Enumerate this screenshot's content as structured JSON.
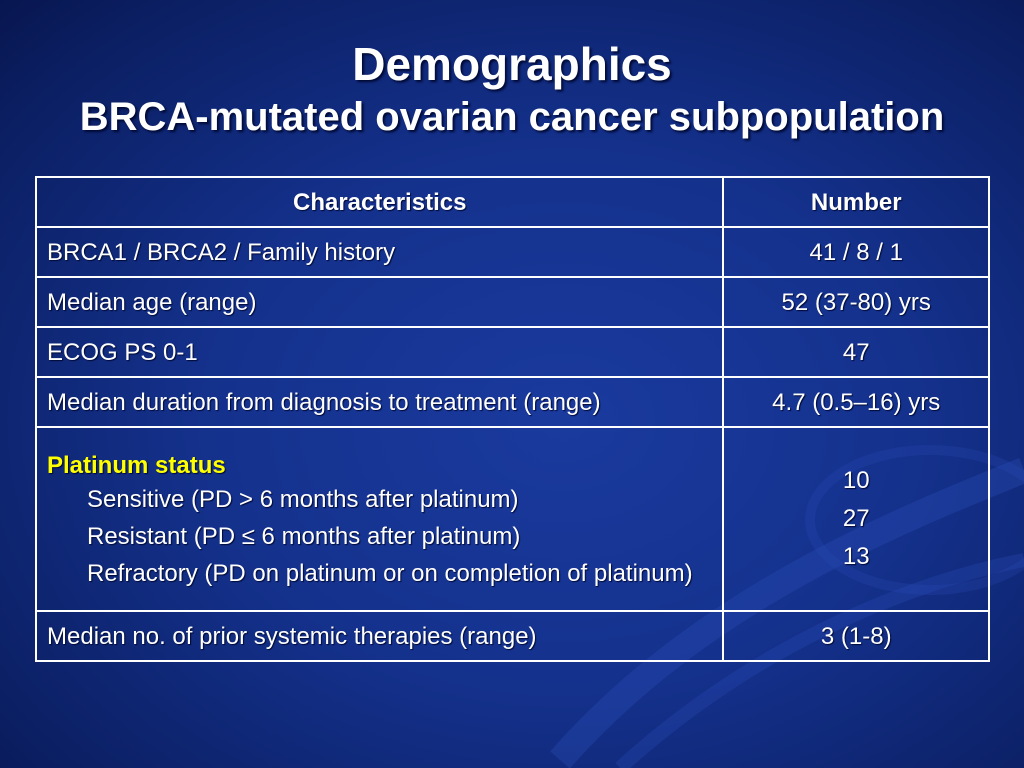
{
  "slide": {
    "title": "Demographics",
    "subtitle": "BRCA-mutated ovarian cancer subpopulation"
  },
  "table": {
    "headers": {
      "characteristics": "Characteristics",
      "number": "Number"
    },
    "rows": [
      {
        "label": "BRCA1 / BRCA2 / Family history",
        "value": "41 / 8 / 1"
      },
      {
        "label": "Median age (range)",
        "value": "52 (37-80) yrs"
      },
      {
        "label": "ECOG PS 0-1",
        "value": "47"
      },
      {
        "label": "Median duration from diagnosis to treatment (range)",
        "value": "4.7 (0.5–16) yrs"
      }
    ],
    "platinum": {
      "heading": "Platinum status",
      "items": [
        {
          "label": "Sensitive (PD > 6 months after platinum)",
          "value": "10"
        },
        {
          "label": "Resistant (PD ≤ 6 months after platinum)",
          "value": "27"
        },
        {
          "label": "Refractory (PD on platinum or on completion of platinum)",
          "value": "13"
        }
      ]
    },
    "last_row": {
      "label": "Median no. of prior systemic therapies (range)",
      "value": "3 (1-8)"
    }
  },
  "colors": {
    "background": "#14318c",
    "heading_accent": "#ffff00",
    "text": "#ffffff"
  }
}
